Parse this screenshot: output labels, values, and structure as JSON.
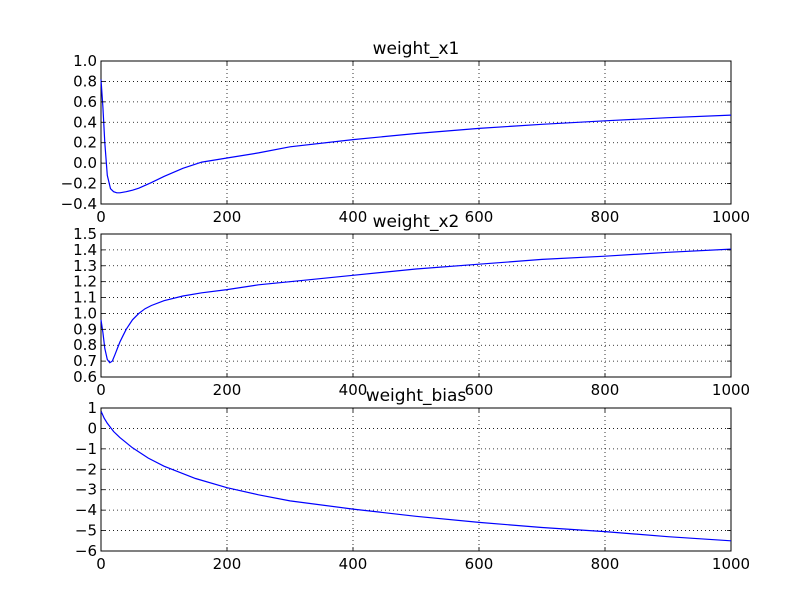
{
  "figure": {
    "background": "#ffffff"
  },
  "chart_data": [
    {
      "type": "line",
      "title": "weight_x1",
      "xlabel": "",
      "ylabel": "",
      "xlim": [
        0,
        1000
      ],
      "ylim": [
        -0.4,
        1.0
      ],
      "xticks": [
        0,
        200,
        400,
        600,
        800,
        1000
      ],
      "yticks": [
        -0.4,
        -0.2,
        0.0,
        0.2,
        0.4,
        0.6,
        0.8,
        1.0
      ],
      "ytick_labels": [
        "−0.4",
        "−0.2",
        "0.0",
        "0.2",
        "0.4",
        "0.6",
        "0.8",
        "1.0"
      ],
      "grid": true,
      "series": [
        {
          "color": "#0000ff",
          "x": [
            0,
            3,
            6,
            10,
            15,
            20,
            25,
            30,
            40,
            50,
            60,
            80,
            100,
            130,
            160,
            200,
            250,
            300,
            400,
            500,
            600,
            700,
            800,
            900,
            1000
          ],
          "y": [
            0.82,
            0.55,
            0.2,
            -0.12,
            -0.25,
            -0.28,
            -0.29,
            -0.29,
            -0.28,
            -0.265,
            -0.245,
            -0.19,
            -0.13,
            -0.05,
            0.01,
            0.05,
            0.1,
            0.16,
            0.23,
            0.29,
            0.34,
            0.38,
            0.415,
            0.445,
            0.47
          ]
        }
      ]
    },
    {
      "type": "line",
      "title": "weight_x2",
      "xlabel": "",
      "ylabel": "",
      "xlim": [
        0,
        1000
      ],
      "ylim": [
        0.6,
        1.5
      ],
      "xticks": [
        0,
        200,
        400,
        600,
        800,
        1000
      ],
      "yticks": [
        0.6,
        0.7,
        0.8,
        0.9,
        1.0,
        1.1,
        1.2,
        1.3,
        1.4,
        1.5
      ],
      "ytick_labels": [
        "0.6",
        "0.7",
        "0.8",
        "0.9",
        "1.0",
        "1.1",
        "1.2",
        "1.3",
        "1.4",
        "1.5"
      ],
      "grid": true,
      "series": [
        {
          "color": "#0000ff",
          "x": [
            0,
            3,
            6,
            10,
            14,
            18,
            22,
            26,
            30,
            35,
            40,
            50,
            60,
            70,
            80,
            100,
            130,
            160,
            200,
            250,
            300,
            400,
            500,
            600,
            700,
            800,
            900,
            1000
          ],
          "y": [
            0.96,
            0.88,
            0.78,
            0.71,
            0.69,
            0.7,
            0.74,
            0.78,
            0.82,
            0.86,
            0.9,
            0.96,
            1.0,
            1.03,
            1.05,
            1.08,
            1.11,
            1.13,
            1.15,
            1.18,
            1.2,
            1.24,
            1.28,
            1.31,
            1.34,
            1.36,
            1.385,
            1.405
          ]
        }
      ]
    },
    {
      "type": "line",
      "title": "weight_bias",
      "xlabel": "",
      "ylabel": "",
      "xlim": [
        0,
        1000
      ],
      "ylim": [
        -6,
        1
      ],
      "xticks": [
        0,
        200,
        400,
        600,
        800,
        1000
      ],
      "yticks": [
        -6,
        -5,
        -4,
        -3,
        -2,
        -1,
        0,
        1
      ],
      "ytick_labels": [
        "−6",
        "−5",
        "−4",
        "−3",
        "−2",
        "−1",
        "0",
        "1"
      ],
      "grid": true,
      "series": [
        {
          "color": "#0000ff",
          "x": [
            0,
            5,
            10,
            20,
            30,
            50,
            75,
            100,
            150,
            200,
            250,
            300,
            400,
            500,
            600,
            700,
            800,
            900,
            1000
          ],
          "y": [
            0.85,
            0.5,
            0.25,
            -0.15,
            -0.45,
            -0.95,
            -1.45,
            -1.85,
            -2.45,
            -2.9,
            -3.25,
            -3.55,
            -3.95,
            -4.3,
            -4.6,
            -4.85,
            -5.05,
            -5.3,
            -5.5
          ]
        }
      ]
    }
  ]
}
